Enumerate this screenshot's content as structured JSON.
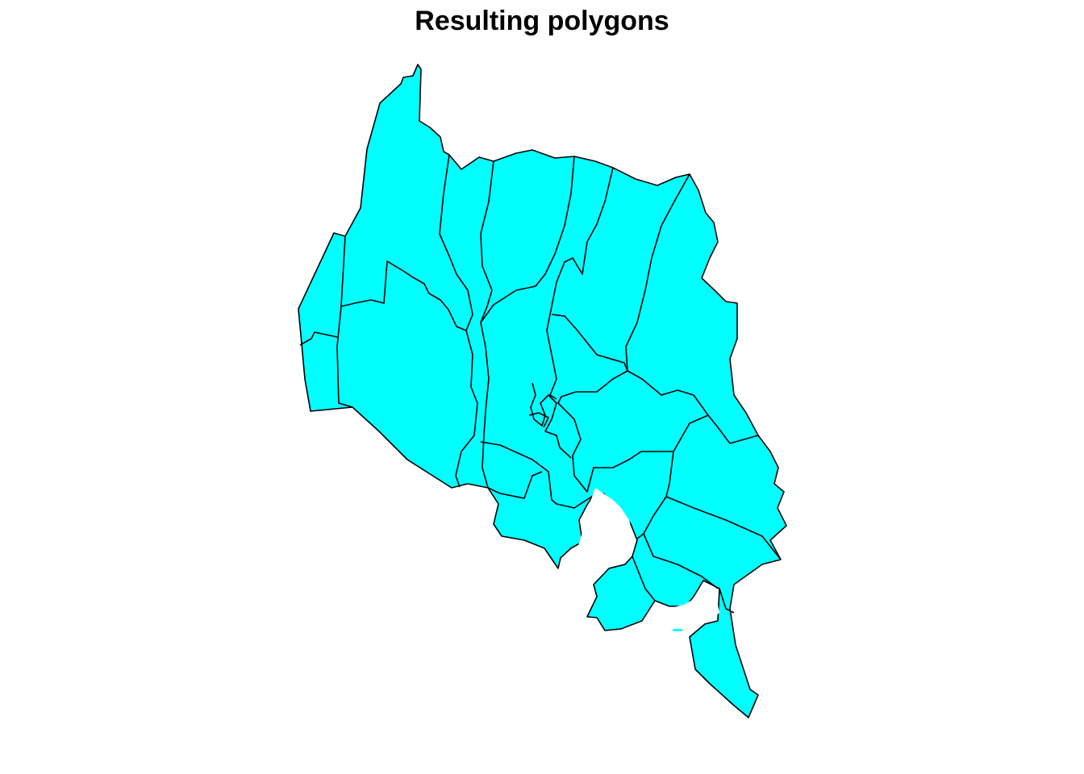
{
  "plot": {
    "title": "Resulting polygons"
  },
  "colors": {
    "fill": "#00ffff",
    "border": "#000000",
    "background": "#ffffff"
  },
  "map": {
    "type": "polygon-map",
    "polygon_fill": "cyan",
    "axes": false,
    "grid": false,
    "legend": "none"
  }
}
